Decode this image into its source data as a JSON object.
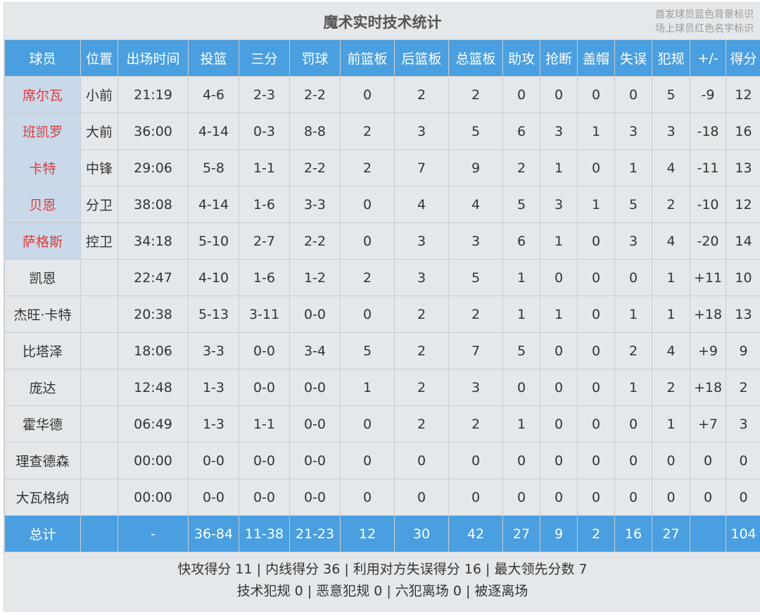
{
  "title": "魔术实时技术统计",
  "legend": {
    "line1": "首发球员蓝色背景标识",
    "line2": "场上球员红色名字标识"
  },
  "colors": {
    "header": "#4a9fe0",
    "starter_bg": "#c9d9ea",
    "on_court_name": "#e03a3a"
  },
  "columns": [
    "球员",
    "位置",
    "出场时间",
    "投篮",
    "三分",
    "罚球",
    "前篮板",
    "后篮板",
    "总篮板",
    "助攻",
    "抢断",
    "盖帽",
    "失误",
    "犯规",
    "+/-",
    "得分"
  ],
  "players": [
    {
      "starter": true,
      "on_court": true,
      "cells": [
        "席尔瓦",
        "小前",
        "21:19",
        "4-6",
        "2-3",
        "2-2",
        "0",
        "2",
        "2",
        "0",
        "0",
        "0",
        "0",
        "5",
        "-9",
        "12"
      ]
    },
    {
      "starter": true,
      "on_court": true,
      "cells": [
        "班凯罗",
        "大前",
        "36:00",
        "4-14",
        "0-3",
        "8-8",
        "2",
        "3",
        "5",
        "6",
        "3",
        "1",
        "3",
        "3",
        "-18",
        "16"
      ]
    },
    {
      "starter": true,
      "on_court": true,
      "cells": [
        "卡特",
        "中锋",
        "29:06",
        "5-8",
        "1-1",
        "2-2",
        "2",
        "7",
        "9",
        "2",
        "1",
        "0",
        "1",
        "4",
        "-11",
        "13"
      ]
    },
    {
      "starter": true,
      "on_court": true,
      "cells": [
        "贝恩",
        "分卫",
        "38:08",
        "4-14",
        "1-6",
        "3-3",
        "0",
        "4",
        "4",
        "5",
        "3",
        "1",
        "5",
        "2",
        "-10",
        "12"
      ]
    },
    {
      "starter": true,
      "on_court": true,
      "cells": [
        "萨格斯",
        "控卫",
        "34:18",
        "5-10",
        "2-7",
        "2-2",
        "0",
        "3",
        "3",
        "6",
        "1",
        "0",
        "3",
        "4",
        "-20",
        "14"
      ]
    },
    {
      "starter": false,
      "on_court": false,
      "cells": [
        "凯恩",
        "",
        "22:47",
        "4-10",
        "1-6",
        "1-2",
        "2",
        "3",
        "5",
        "1",
        "0",
        "0",
        "0",
        "1",
        "+11",
        "10"
      ]
    },
    {
      "starter": false,
      "on_court": false,
      "cells": [
        "杰旺·卡特",
        "",
        "20:38",
        "5-13",
        "3-11",
        "0-0",
        "0",
        "2",
        "2",
        "1",
        "1",
        "0",
        "1",
        "1",
        "+18",
        "13"
      ]
    },
    {
      "starter": false,
      "on_court": false,
      "cells": [
        "比塔泽",
        "",
        "18:06",
        "3-3",
        "0-0",
        "3-4",
        "5",
        "2",
        "7",
        "5",
        "0",
        "0",
        "2",
        "4",
        "+9",
        "9"
      ]
    },
    {
      "starter": false,
      "on_court": false,
      "cells": [
        "庞达",
        "",
        "12:48",
        "1-3",
        "0-0",
        "0-0",
        "1",
        "2",
        "3",
        "0",
        "0",
        "0",
        "1",
        "2",
        "+18",
        "2"
      ]
    },
    {
      "starter": false,
      "on_court": false,
      "cells": [
        "霍华德",
        "",
        "06:49",
        "1-3",
        "1-1",
        "0-0",
        "0",
        "2",
        "2",
        "1",
        "0",
        "0",
        "0",
        "1",
        "+7",
        "3"
      ]
    },
    {
      "starter": false,
      "on_court": false,
      "cells": [
        "理查德森",
        "",
        "00:00",
        "0-0",
        "0-0",
        "0-0",
        "0",
        "0",
        "0",
        "0",
        "0",
        "0",
        "0",
        "0",
        "0",
        "0"
      ]
    },
    {
      "starter": false,
      "on_court": false,
      "cells": [
        "大瓦格纳",
        "",
        "00:00",
        "0-0",
        "0-0",
        "0-0",
        "0",
        "0",
        "0",
        "0",
        "0",
        "0",
        "0",
        "0",
        "0",
        "0"
      ]
    }
  ],
  "total": [
    "总计",
    "",
    "-",
    "36-84",
    "11-38",
    "21-23",
    "12",
    "30",
    "42",
    "27",
    "9",
    "2",
    "16",
    "27",
    "",
    "104"
  ],
  "summary": {
    "line1": "快攻得分 11 | 内线得分 36 | 利用对方失误得分 16 | 最大领先分数 7",
    "line2": "技术犯规 0 | 恶意犯规 0 | 六犯离场 0 | 被逐离场"
  }
}
